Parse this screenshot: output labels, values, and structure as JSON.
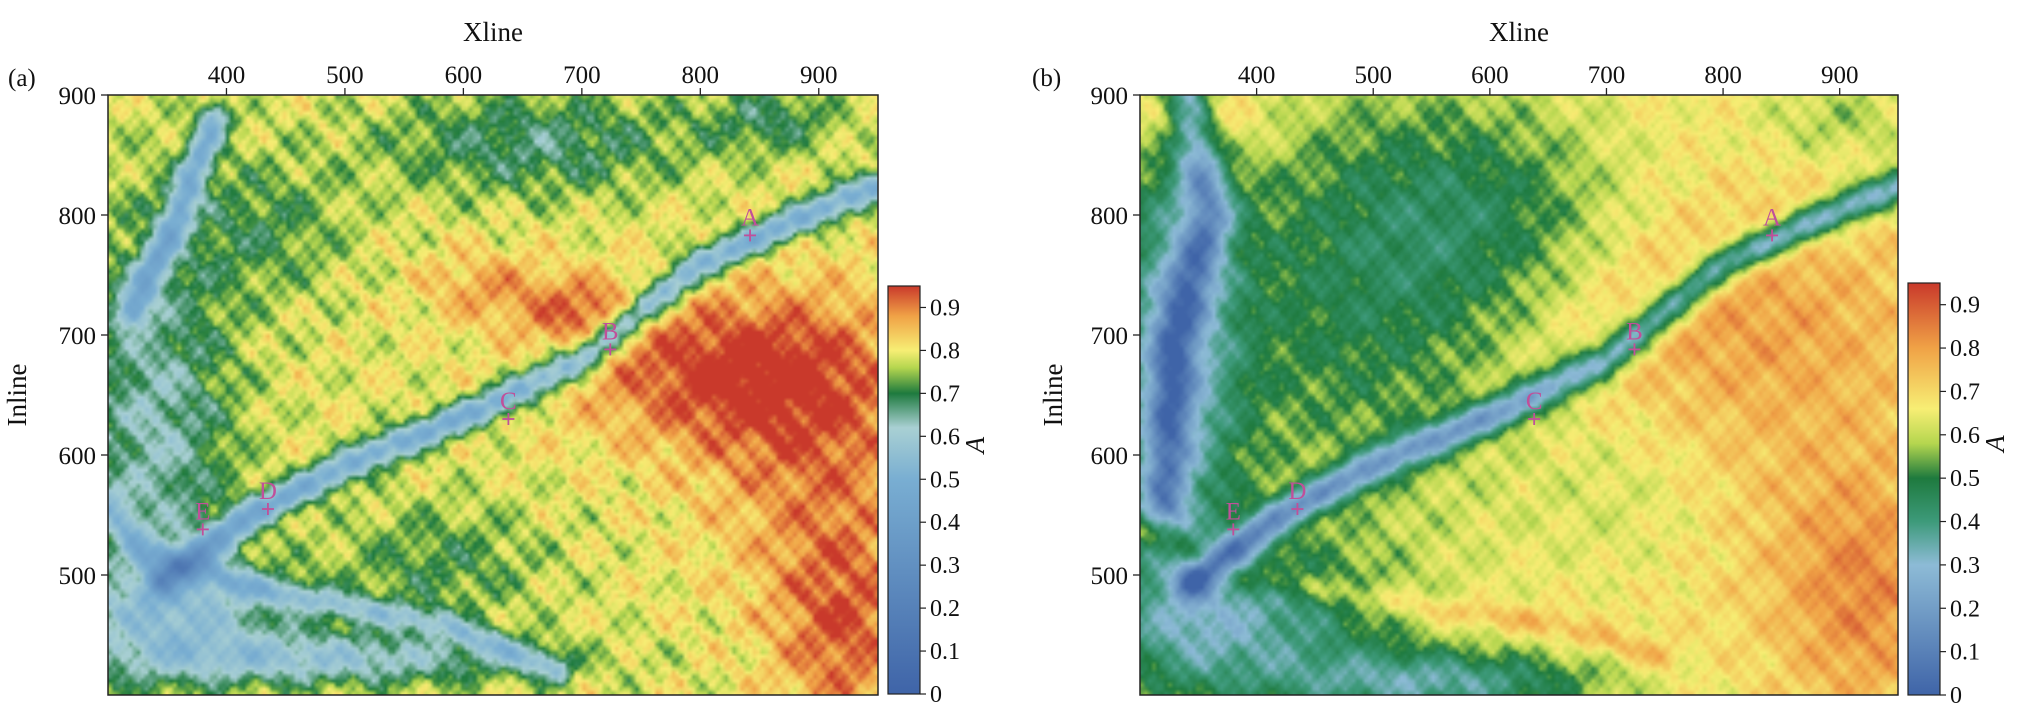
{
  "chart_data": [
    {
      "type": "heatmap",
      "panel_label": "(a)",
      "xlabel": "Xline",
      "ylabel": "Inline",
      "x_ticks": [
        "400",
        "500",
        "600",
        "700",
        "800",
        "900"
      ],
      "y_ticks": [
        "900",
        "800",
        "700",
        "600",
        "500"
      ],
      "xlim": [
        300,
        950
      ],
      "ylim": [
        400,
        900
      ],
      "colorbar": {
        "label": "A",
        "range": [
          0,
          0.95
        ],
        "ticks": [
          "0",
          "0.1",
          "0.2",
          "0.3",
          "0.4",
          "0.5",
          "0.6",
          "0.7",
          "0.8",
          "0.9"
        ],
        "stops": [
          {
            "v": 0.0,
            "color": "#3f64a8"
          },
          {
            "v": 0.5,
            "color": "#79aed2"
          },
          {
            "v": 0.62,
            "color": "#a9d0d3"
          },
          {
            "v": 0.7,
            "color": "#1e7a3e"
          },
          {
            "v": 0.76,
            "color": "#b5d64f"
          },
          {
            "v": 0.8,
            "color": "#f7ee74"
          },
          {
            "v": 0.88,
            "color": "#f0a246"
          },
          {
            "v": 0.95,
            "color": "#c9392b"
          }
        ]
      },
      "annotations": [
        {
          "label": "A",
          "x": 842,
          "y": 783
        },
        {
          "label": "B",
          "x": 724,
          "y": 688
        },
        {
          "label": "C",
          "x": 638,
          "y": 630
        },
        {
          "label": "D",
          "x": 435,
          "y": 555
        },
        {
          "label": "E",
          "x": 380,
          "y": 538
        }
      ],
      "marker_color": "#c0509a",
      "field": {
        "base": 0.79,
        "blobs": [
          {
            "x": 820,
            "y": 670,
            "sx": 90,
            "sy": 45,
            "v": 0.15
          },
          {
            "x": 900,
            "y": 600,
            "sx": 70,
            "sy": 90,
            "v": 0.1
          },
          {
            "x": 920,
            "y": 450,
            "sx": 40,
            "sy": 60,
            "v": 0.12
          },
          {
            "x": 700,
            "y": 720,
            "sx": 35,
            "sy": 20,
            "v": 0.1
          },
          {
            "x": 620,
            "y": 740,
            "sx": 40,
            "sy": 22,
            "v": 0.08
          },
          {
            "x": 340,
            "y": 620,
            "sx": 45,
            "sy": 120,
            "v": -0.16
          },
          {
            "x": 360,
            "y": 470,
            "sx": 70,
            "sy": 30,
            "v": -0.18
          },
          {
            "x": 660,
            "y": 860,
            "sx": 90,
            "sy": 30,
            "v": -0.12
          },
          {
            "x": 480,
            "y": 430,
            "sx": 120,
            "sy": 15,
            "v": -0.2
          },
          {
            "x": 430,
            "y": 790,
            "sx": 50,
            "sy": 40,
            "v": -0.08
          },
          {
            "x": 580,
            "y": 510,
            "sx": 60,
            "sy": 35,
            "v": -0.08
          },
          {
            "x": 860,
            "y": 880,
            "sx": 40,
            "sy": 20,
            "v": -0.1
          }
        ],
        "channels": [
          {
            "pts": [
              [
                345,
                495
              ],
              [
                420,
                550
              ],
              [
                520,
                600
              ],
              [
                620,
                640
              ],
              [
                700,
                680
              ],
              [
                800,
                760
              ],
              [
                950,
                825
              ]
            ],
            "w": 9,
            "v": -0.3
          },
          {
            "pts": [
              [
                320,
                720
              ],
              [
                355,
                790
              ],
              [
                390,
                880
              ]
            ],
            "w": 9,
            "v": -0.26
          },
          {
            "pts": [
              [
                300,
                560
              ],
              [
                330,
                520
              ],
              [
                420,
                490
              ],
              [
                520,
                470
              ],
              [
                580,
                460
              ],
              [
                680,
                420
              ]
            ],
            "w": 8,
            "v": -0.18
          }
        ]
      }
    },
    {
      "type": "heatmap",
      "panel_label": "(b)",
      "xlabel": "Xline",
      "ylabel": "Inline",
      "x_ticks": [
        "400",
        "500",
        "600",
        "700",
        "800",
        "900"
      ],
      "y_ticks": [
        "900",
        "800",
        "700",
        "600",
        "500"
      ],
      "xlim": [
        300,
        950
      ],
      "ylim": [
        400,
        900
      ],
      "colorbar": {
        "label": "A",
        "range": [
          0,
          0.95
        ],
        "ticks": [
          "0",
          "0.1",
          "0.2",
          "0.3",
          "0.4",
          "0.5",
          "0.6",
          "0.7",
          "0.8",
          "0.9"
        ],
        "stops": [
          {
            "v": 0.0,
            "color": "#3f64a8"
          },
          {
            "v": 0.3,
            "color": "#8dbbd6"
          },
          {
            "v": 0.4,
            "color": "#3d9a7a"
          },
          {
            "v": 0.5,
            "color": "#1e7a3e"
          },
          {
            "v": 0.58,
            "color": "#b5d64f"
          },
          {
            "v": 0.66,
            "color": "#f7ee74"
          },
          {
            "v": 0.8,
            "color": "#f0a246"
          },
          {
            "v": 0.95,
            "color": "#c9392b"
          }
        ]
      },
      "annotations": [
        {
          "label": "A",
          "x": 842,
          "y": 783
        },
        {
          "label": "B",
          "x": 724,
          "y": 688
        },
        {
          "label": "C",
          "x": 638,
          "y": 630
        },
        {
          "label": "D",
          "x": 435,
          "y": 555
        },
        {
          "label": "E",
          "x": 380,
          "y": 538
        }
      ],
      "marker_color": "#c0509a",
      "field": {
        "base": 0.68,
        "blobs": [
          {
            "x": 800,
            "y": 720,
            "sx": 120,
            "sy": 60,
            "v": 0.1
          },
          {
            "x": 920,
            "y": 480,
            "sx": 50,
            "sy": 70,
            "v": 0.14
          },
          {
            "x": 860,
            "y": 600,
            "sx": 100,
            "sy": 90,
            "v": 0.05
          },
          {
            "x": 350,
            "y": 880,
            "sx": 40,
            "sy": 25,
            "v": 0.15
          },
          {
            "x": 480,
            "y": 720,
            "sx": 110,
            "sy": 140,
            "v": -0.18
          },
          {
            "x": 600,
            "y": 800,
            "sx": 90,
            "sy": 70,
            "v": -0.15
          },
          {
            "x": 330,
            "y": 680,
            "sx": 40,
            "sy": 140,
            "v": -0.32
          },
          {
            "x": 380,
            "y": 460,
            "sx": 90,
            "sy": 45,
            "v": -0.3
          },
          {
            "x": 560,
            "y": 410,
            "sx": 100,
            "sy": 20,
            "v": -0.3
          },
          {
            "x": 720,
            "y": 560,
            "sx": 60,
            "sy": 50,
            "v": -0.06
          },
          {
            "x": 900,
            "y": 880,
            "sx": 50,
            "sy": 25,
            "v": -0.1
          }
        ],
        "channels": [
          {
            "pts": [
              [
                345,
                495
              ],
              [
                420,
                550
              ],
              [
                520,
                600
              ],
              [
                620,
                640
              ],
              [
                700,
                680
              ],
              [
                800,
                760
              ],
              [
                950,
                825
              ]
            ],
            "w": 10,
            "v": -0.4
          },
          {
            "pts": [
              [
                340,
                900
              ],
              [
                360,
                800
              ],
              [
                330,
                700
              ],
              [
                320,
                560
              ]
            ],
            "w": 14,
            "v": -0.32
          },
          {
            "pts": [
              [
                300,
                540
              ],
              [
                380,
                500
              ],
              [
                480,
                485
              ],
              [
                560,
                470
              ],
              [
                650,
                460
              ],
              [
                750,
                430
              ]
            ],
            "w": 8,
            "v": 0.1
          }
        ]
      }
    }
  ]
}
